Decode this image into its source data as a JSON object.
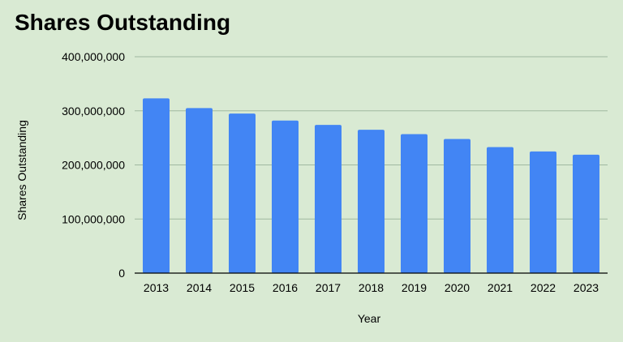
{
  "chart_data": {
    "type": "bar",
    "title": "Shares Outstanding",
    "xlabel": "Year",
    "ylabel": "Shares Outstanding",
    "categories": [
      "2013",
      "2014",
      "2015",
      "2016",
      "2017",
      "2018",
      "2019",
      "2020",
      "2021",
      "2022",
      "2023"
    ],
    "values": [
      323000000,
      305000000,
      295000000,
      282000000,
      274000000,
      265000000,
      257000000,
      248000000,
      233000000,
      225000000,
      219000000
    ],
    "ylim": [
      0,
      400000000
    ],
    "yticks": [
      0,
      100000000,
      200000000,
      300000000,
      400000000
    ],
    "ytick_labels": [
      "0",
      "100,000,000",
      "200,000,000",
      "300,000,000",
      "400,000,000"
    ],
    "grid": true,
    "legend": "none",
    "colors": {
      "background": "#d9ead3",
      "bar": "#4285f4",
      "grid": "#9fb8a0",
      "axis": "#000000",
      "text": "#000000"
    }
  }
}
